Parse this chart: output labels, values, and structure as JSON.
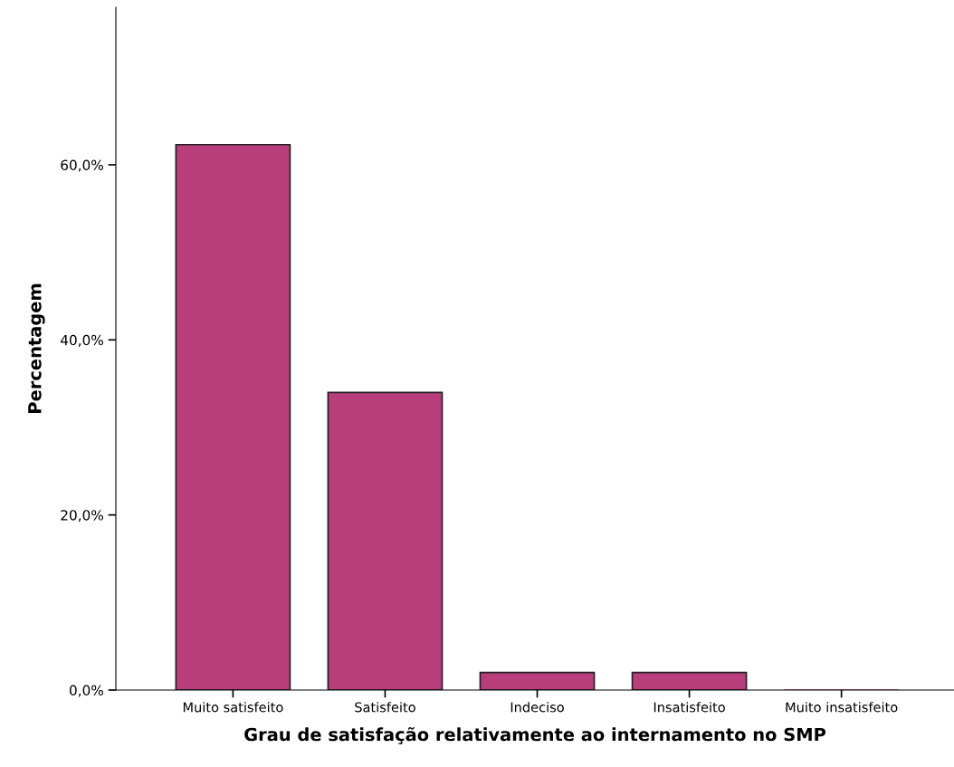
{
  "chart_data": {
    "type": "bar",
    "xlabel": "Grau de satisfação relativamente ao internamento no SMP",
    "ylabel": "Percentagem",
    "categories": [
      "Muito satisfeito",
      "Satisfeito",
      "Indeciso",
      "Insatisfeito",
      "Muito insatisfeito"
    ],
    "values": [
      62.3,
      34.0,
      2.0,
      2.0,
      0.0
    ],
    "color": "#b93e7c",
    "ylim": [
      0,
      78
    ],
    "yticks": [
      {
        "value": 0,
        "label": "0,0%"
      },
      {
        "value": 20,
        "label": "20,0%"
      },
      {
        "value": 40,
        "label": "40,0%"
      },
      {
        "value": 60,
        "label": "60,0%"
      }
    ],
    "grid": false,
    "legend": false
  }
}
